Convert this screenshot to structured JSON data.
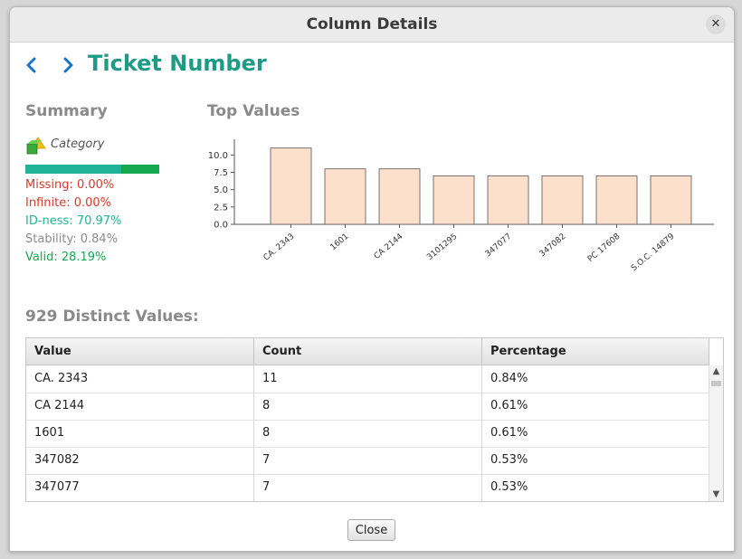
{
  "window": {
    "title": "Column Details"
  },
  "header": {
    "title": "Ticket Number"
  },
  "summary": {
    "title": "Summary",
    "type_label": "Category",
    "quality_bar": {
      "id_ness_fraction": 0.7097,
      "valid_fraction": 0.2819
    },
    "stats": {
      "missing": "Missing: 0.00%",
      "infinite": "Infinite: 0.00%",
      "id_ness": "ID-ness: 70.97%",
      "stability": "Stability: 0.84%",
      "valid": "Valid: 28.19%"
    },
    "colors": {
      "missing": "#d23b2b",
      "infinite": "#d23b2b",
      "id_ness": "#21b29a",
      "stability": "#8c8c8c",
      "valid": "#16a84f"
    }
  },
  "top_values": {
    "title": "Top Values"
  },
  "chart_data": {
    "type": "bar",
    "categories": [
      "CA. 2343",
      "1601",
      "CA 2144",
      "3101295",
      "347077",
      "347082",
      "PC 17608",
      "S.O.C. 14879"
    ],
    "values": [
      11,
      8,
      8,
      7,
      7,
      7,
      7,
      7
    ],
    "ylim": [
      0,
      12
    ],
    "yticks": [
      "0.0",
      "2.5",
      "5.0",
      "7.5",
      "10.0"
    ],
    "bar_color": "#fde0cc"
  },
  "distinct": {
    "label": "929 Distinct Values:"
  },
  "table": {
    "columns": [
      "Value",
      "Count",
      "Percentage"
    ],
    "rows": [
      [
        "CA. 2343",
        "11",
        "0.84%"
      ],
      [
        "CA 2144",
        "8",
        "0.61%"
      ],
      [
        "1601",
        "8",
        "0.61%"
      ],
      [
        "347082",
        "7",
        "0.53%"
      ],
      [
        "347077",
        "7",
        "0.53%"
      ]
    ]
  },
  "footer": {
    "close_label": "Close"
  }
}
